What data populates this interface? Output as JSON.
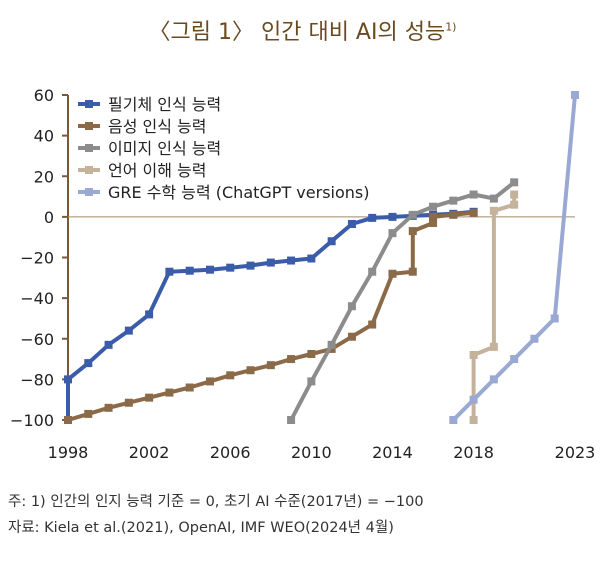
{
  "title": "〈그림 1〉 인간 대비 AI의 성능",
  "title_footnote": "1)",
  "notes": {
    "note1": "주: 1) 인간의 인지 능력 기준 = 0, 초기 AI 수준(2017년) = −100",
    "source": "자료: Kiela et al.(2021), OpenAI, IMF WEO(2024년 4월)"
  },
  "chart_data": {
    "type": "line",
    "title": "〈그림 1〉 인간 대비 AI의 성능",
    "xlabel": "",
    "ylabel": "",
    "xlim": [
      1998,
      2023
    ],
    "ylim": [
      -100,
      60
    ],
    "x_ticks": [
      1998,
      2002,
      2006,
      2010,
      2014,
      2018,
      2023
    ],
    "y_ticks": [
      60,
      40,
      20,
      0,
      -20,
      -40,
      -60,
      -80,
      -100
    ],
    "y_tick_labels": [
      "60",
      "40",
      "20",
      "0",
      "−20",
      "−40",
      "−60",
      "−80",
      "−100"
    ],
    "reference_line": 0,
    "legend_position": "top-left",
    "series": [
      {
        "name": "필기체 인식 능력",
        "color": "#3b5ca8",
        "marker": "square",
        "points": [
          [
            1998,
            -100
          ],
          [
            1998,
            -80
          ],
          [
            1999,
            -72
          ],
          [
            2000,
            -63
          ],
          [
            2001,
            -56
          ],
          [
            2002,
            -48
          ],
          [
            2003,
            -27
          ],
          [
            2004,
            -26.5
          ],
          [
            2005,
            -26
          ],
          [
            2006,
            -25
          ],
          [
            2007,
            -24
          ],
          [
            2008,
            -22.5
          ],
          [
            2009,
            -21.5
          ],
          [
            2010,
            -20.5
          ],
          [
            2011,
            -12
          ],
          [
            2012,
            -3.5
          ],
          [
            2013,
            -0.5
          ],
          [
            2014,
            0
          ],
          [
            2015,
            0.5
          ],
          [
            2016,
            1
          ],
          [
            2017,
            1.5
          ],
          [
            2018,
            2.5
          ]
        ]
      },
      {
        "name": "음성 인식 능력",
        "color": "#8a6a48",
        "marker": "square",
        "points": [
          [
            1998,
            -100
          ],
          [
            1999,
            -97
          ],
          [
            2000,
            -94
          ],
          [
            2001,
            -91.5
          ],
          [
            2002,
            -89
          ],
          [
            2003,
            -86.5
          ],
          [
            2004,
            -84
          ],
          [
            2005,
            -81
          ],
          [
            2006,
            -78
          ],
          [
            2007,
            -75.5
          ],
          [
            2008,
            -73
          ],
          [
            2009,
            -70
          ],
          [
            2010,
            -67.5
          ],
          [
            2011,
            -65
          ],
          [
            2012,
            -59
          ],
          [
            2013,
            -53
          ],
          [
            2014,
            -28
          ],
          [
            2015,
            -27
          ],
          [
            2015,
            -7
          ],
          [
            2016,
            -3
          ],
          [
            2016,
            0
          ],
          [
            2017,
            1
          ],
          [
            2018,
            2
          ]
        ]
      },
      {
        "name": "이미지 인식 능력",
        "color": "#8c8c8c",
        "marker": "square",
        "points": [
          [
            2009,
            -100
          ],
          [
            2010,
            -81
          ],
          [
            2011,
            -63
          ],
          [
            2012,
            -44
          ],
          [
            2013,
            -27
          ],
          [
            2014,
            -8
          ],
          [
            2015,
            1
          ],
          [
            2016,
            5
          ],
          [
            2017,
            8
          ],
          [
            2018,
            11
          ],
          [
            2019,
            9
          ],
          [
            2020,
            17
          ]
        ]
      },
      {
        "name": "언어 이해 능력",
        "color": "#c4b29c",
        "marker": "square",
        "points": [
          [
            2018,
            -100
          ],
          [
            2018,
            -68
          ],
          [
            2019,
            -64
          ],
          [
            2019,
            3
          ],
          [
            2020,
            6
          ],
          [
            2020,
            11
          ]
        ]
      },
      {
        "name": "GRE 수학 능력 (ChatGPT versions)",
        "color": "#9aa8d4",
        "marker": "square",
        "points": [
          [
            2017,
            -100
          ],
          [
            2018,
            -90
          ],
          [
            2019,
            -80
          ],
          [
            2020,
            -70
          ],
          [
            2021,
            -60
          ],
          [
            2022,
            -50
          ],
          [
            2023,
            60
          ]
        ]
      }
    ]
  }
}
